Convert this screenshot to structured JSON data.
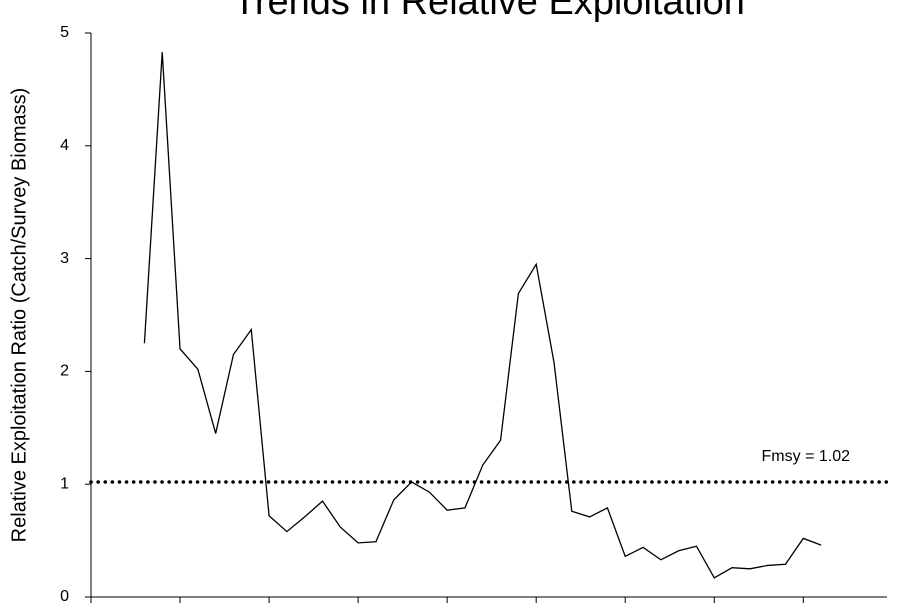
{
  "chart_data": {
    "type": "line",
    "title": "Trends in Relative Exploitation",
    "y_label": "Relative Exploitation Ratio (Catch/Survey Biomass)",
    "x": [
      3,
      4,
      5,
      6,
      7,
      8,
      9,
      10,
      11,
      12,
      13,
      14,
      15,
      16,
      17,
      18,
      19,
      20,
      21,
      22,
      23,
      24,
      25,
      26,
      27,
      28,
      29,
      30,
      31,
      32,
      33,
      34,
      35,
      36,
      37,
      38,
      39,
      40,
      41
    ],
    "series": [
      {
        "name": "Relative Exploitation",
        "color": "#000000",
        "values": [
          2.25,
          4.83,
          2.2,
          2.02,
          1.45,
          2.15,
          2.37,
          0.72,
          0.58,
          0.71,
          0.85,
          0.62,
          0.48,
          0.49,
          0.86,
          1.02,
          0.93,
          0.77,
          0.79,
          1.17,
          1.39,
          2.69,
          2.95,
          2.08,
          0.76,
          0.71,
          0.79,
          0.36,
          0.44,
          0.33,
          0.41,
          0.45,
          0.17,
          0.26,
          0.25,
          0.28,
          0.29,
          0.52,
          0.46
        ]
      }
    ],
    "xlim": [
      0,
      44.7
    ],
    "xticks": [
      0,
      5,
      10,
      15,
      20,
      25,
      30,
      35,
      40
    ],
    "ylim": [
      0,
      5
    ],
    "yticks": [
      0,
      1,
      2,
      3,
      4,
      5
    ],
    "reference_line": {
      "value": 1.02,
      "label": "Fmsy = 1.02",
      "color": "#000000",
      "style": "dotted"
    }
  }
}
